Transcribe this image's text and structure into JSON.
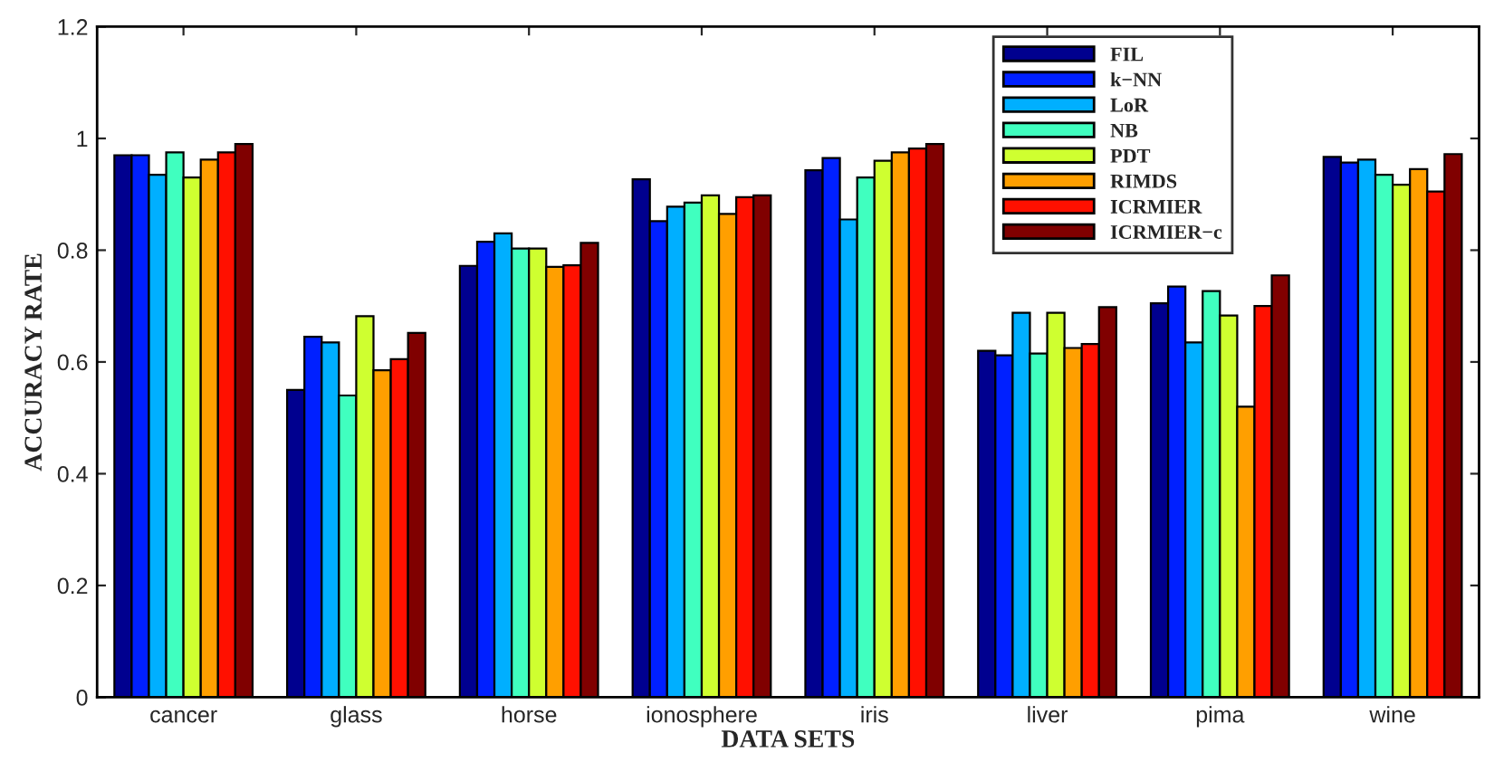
{
  "chart_data": {
    "type": "bar",
    "xlabel": "DATA SETS",
    "ylabel": "ACCURACY RATE",
    "categories": [
      "cancer",
      "glass",
      "horse",
      "ionosphere",
      "iris",
      "liver",
      "pima",
      "wine"
    ],
    "series": [
      {
        "name": "FIL",
        "color": "#00008f",
        "values": [
          0.97,
          0.55,
          0.772,
          0.927,
          0.943,
          0.62,
          0.705,
          0.967
        ]
      },
      {
        "name": "k−NN",
        "color": "#0020ff",
        "values": [
          0.97,
          0.645,
          0.815,
          0.852,
          0.965,
          0.612,
          0.735,
          0.957
        ]
      },
      {
        "name": "LoR",
        "color": "#00afff",
        "values": [
          0.935,
          0.635,
          0.83,
          0.878,
          0.855,
          0.688,
          0.635,
          0.962
        ]
      },
      {
        "name": "NB",
        "color": "#40ffbf",
        "values": [
          0.975,
          0.54,
          0.803,
          0.885,
          0.93,
          0.615,
          0.727,
          0.935
        ]
      },
      {
        "name": "PDT",
        "color": "#cfff30",
        "values": [
          0.93,
          0.682,
          0.803,
          0.898,
          0.96,
          0.688,
          0.683,
          0.917
        ]
      },
      {
        "name": "RIMDS",
        "color": "#ff9f00",
        "values": [
          0.962,
          0.585,
          0.77,
          0.865,
          0.975,
          0.625,
          0.52,
          0.945
        ]
      },
      {
        "name": "ICRMIER",
        "color": "#ff1000",
        "values": [
          0.975,
          0.605,
          0.773,
          0.895,
          0.982,
          0.632,
          0.7,
          0.905
        ]
      },
      {
        "name": "ICRMIER−c",
        "color": "#800000",
        "values": [
          0.99,
          0.652,
          0.813,
          0.898,
          0.99,
          0.698,
          0.755,
          0.972
        ]
      }
    ],
    "ylim": [
      0,
      1.2
    ],
    "yticks": [
      0,
      0.2,
      0.4,
      0.6,
      0.8,
      1,
      1.2
    ],
    "grid": false,
    "legend": "top"
  }
}
